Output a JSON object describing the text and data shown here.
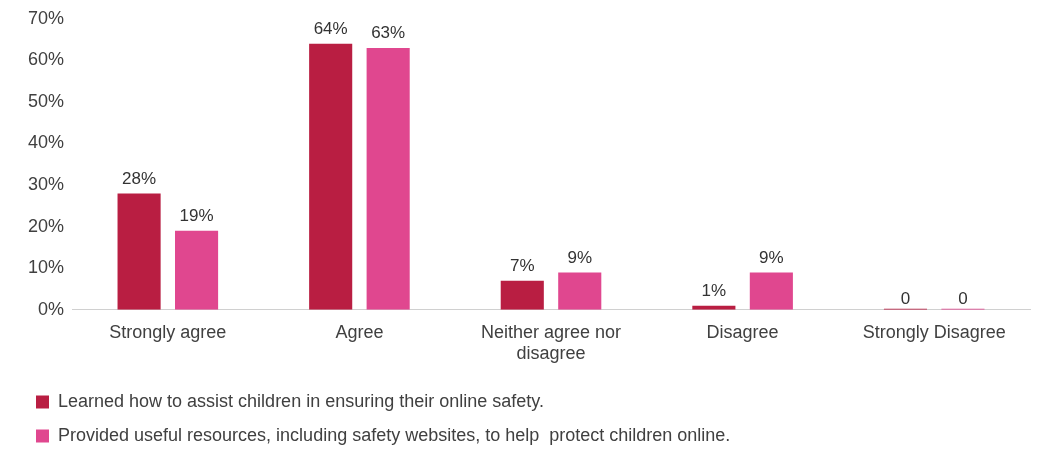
{
  "chart_data": {
    "type": "bar",
    "categories": [
      "Strongly agree",
      "Agree",
      "Neither agree nor disagree",
      "Disagree",
      "Strongly Disagree"
    ],
    "series": [
      {
        "name": "Learned how to assist children in ensuring their online safety.",
        "color": "#b91e42",
        "values": [
          28,
          64,
          7,
          1,
          0
        ],
        "value_labels": [
          "28%",
          "64%",
          "7%",
          "1%",
          "0"
        ]
      },
      {
        "name": "Provided useful resources, including safety websites, to help  protect children online.",
        "color": "#e0478f",
        "values": [
          19,
          63,
          9,
          9,
          0
        ],
        "value_labels": [
          "19%",
          "63%",
          "9%",
          "9%",
          "0"
        ]
      }
    ],
    "ylim": [
      0,
      70
    ],
    "yticks": [
      {
        "value": 0,
        "label": "0%"
      },
      {
        "value": 10,
        "label": "10%"
      },
      {
        "value": 20,
        "label": "20%"
      },
      {
        "value": 30,
        "label": "30%"
      },
      {
        "value": 40,
        "label": "40%"
      },
      {
        "value": 50,
        "label": "50%"
      },
      {
        "value": 60,
        "label": "60%"
      },
      {
        "value": 70,
        "label": "70%"
      }
    ],
    "grid": false,
    "legend": "bottom"
  }
}
